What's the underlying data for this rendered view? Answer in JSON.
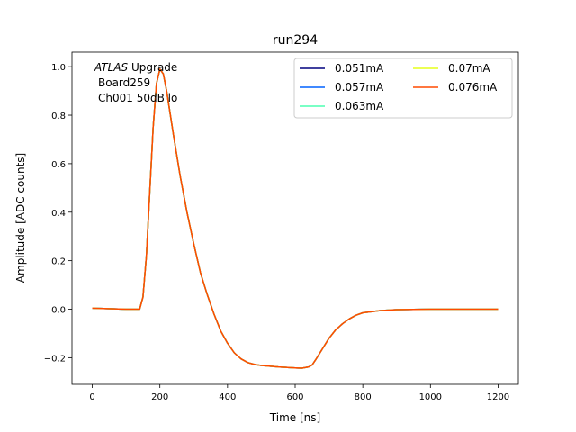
{
  "chart_data": {
    "type": "line",
    "title": "run294",
    "xlabel": "Time [ns]",
    "ylabel": "Amplitude [ADC counts]",
    "xlim": [
      -60,
      1260
    ],
    "ylim": [
      -0.31,
      1.06
    ],
    "xticks": [
      0,
      200,
      400,
      600,
      800,
      1000,
      1200
    ],
    "yticks": [
      -0.2,
      0.0,
      0.2,
      0.4,
      0.6,
      0.8,
      1.0
    ],
    "xtick_labels": [
      "0",
      "200",
      "400",
      "600",
      "800",
      "1000",
      "1200"
    ],
    "ytick_labels": [
      "−0.2",
      "0.0",
      "0.2",
      "0.4",
      "0.6",
      "0.8",
      "1.0"
    ],
    "grid": false,
    "legend_placement": "top-right",
    "legend_columns": 2,
    "annotation": {
      "italic": "ATLAS",
      "rest": " Upgrade",
      "line2": "Board259",
      "line3": "Ch001 50dB lo"
    },
    "x": [
      0,
      100,
      140,
      150,
      160,
      170,
      180,
      190,
      200,
      210,
      220,
      240,
      260,
      280,
      300,
      320,
      340,
      360,
      380,
      400,
      420,
      440,
      460,
      480,
      500,
      550,
      600,
      620,
      640,
      650,
      660,
      680,
      700,
      720,
      740,
      760,
      780,
      800,
      850,
      900,
      1000,
      1100,
      1200
    ],
    "series": [
      {
        "name": "0.051mA",
        "color": "#00007f",
        "values": [
          0.004,
          0.0,
          0.0,
          0.05,
          0.22,
          0.48,
          0.75,
          0.93,
          0.99,
          0.97,
          0.9,
          0.72,
          0.55,
          0.4,
          0.27,
          0.15,
          0.06,
          -0.02,
          -0.09,
          -0.14,
          -0.18,
          -0.205,
          -0.22,
          -0.228,
          -0.232,
          -0.238,
          -0.242,
          -0.243,
          -0.238,
          -0.23,
          -0.21,
          -0.165,
          -0.12,
          -0.085,
          -0.06,
          -0.04,
          -0.025,
          -0.015,
          -0.006,
          -0.002,
          0.0,
          0.0,
          0.0
        ]
      },
      {
        "name": "0.057mA",
        "color": "#0062ff",
        "values": [
          0.004,
          0.0,
          0.0,
          0.05,
          0.22,
          0.48,
          0.75,
          0.93,
          0.99,
          0.97,
          0.9,
          0.72,
          0.55,
          0.4,
          0.27,
          0.15,
          0.06,
          -0.02,
          -0.09,
          -0.14,
          -0.18,
          -0.205,
          -0.22,
          -0.228,
          -0.232,
          -0.238,
          -0.242,
          -0.243,
          -0.238,
          -0.23,
          -0.21,
          -0.165,
          -0.12,
          -0.085,
          -0.06,
          -0.04,
          -0.025,
          -0.015,
          -0.006,
          -0.002,
          0.0,
          0.0,
          0.0
        ]
      },
      {
        "name": "0.063mA",
        "color": "#4dffb2",
        "values": [
          0.004,
          0.0,
          0.0,
          0.05,
          0.22,
          0.48,
          0.75,
          0.93,
          0.99,
          0.97,
          0.9,
          0.72,
          0.55,
          0.4,
          0.27,
          0.15,
          0.06,
          -0.02,
          -0.09,
          -0.14,
          -0.18,
          -0.205,
          -0.22,
          -0.228,
          -0.232,
          -0.238,
          -0.242,
          -0.243,
          -0.238,
          -0.23,
          -0.21,
          -0.165,
          -0.12,
          -0.085,
          -0.06,
          -0.04,
          -0.025,
          -0.015,
          -0.006,
          -0.002,
          0.0,
          0.0,
          0.0
        ]
      },
      {
        "name": "0.07mA",
        "color": "#e6ff1a",
        "values": [
          0.004,
          0.0,
          0.0,
          0.05,
          0.22,
          0.48,
          0.75,
          0.93,
          0.99,
          0.97,
          0.9,
          0.72,
          0.55,
          0.4,
          0.27,
          0.15,
          0.06,
          -0.02,
          -0.09,
          -0.14,
          -0.18,
          -0.205,
          -0.22,
          -0.228,
          -0.232,
          -0.238,
          -0.242,
          -0.243,
          -0.238,
          -0.23,
          -0.21,
          -0.165,
          -0.12,
          -0.085,
          -0.06,
          -0.04,
          -0.025,
          -0.015,
          -0.006,
          -0.002,
          0.0,
          0.0,
          0.0
        ]
      },
      {
        "name": "0.076mA",
        "color": "#ff4a00",
        "values": [
          0.004,
          0.0,
          0.0,
          0.05,
          0.22,
          0.48,
          0.75,
          0.93,
          0.99,
          0.97,
          0.9,
          0.72,
          0.55,
          0.4,
          0.27,
          0.15,
          0.06,
          -0.02,
          -0.09,
          -0.14,
          -0.18,
          -0.205,
          -0.22,
          -0.228,
          -0.232,
          -0.238,
          -0.242,
          -0.243,
          -0.238,
          -0.23,
          -0.21,
          -0.165,
          -0.12,
          -0.085,
          -0.06,
          -0.04,
          -0.025,
          -0.015,
          -0.006,
          -0.002,
          0.0,
          0.0,
          0.0
        ]
      }
    ]
  }
}
